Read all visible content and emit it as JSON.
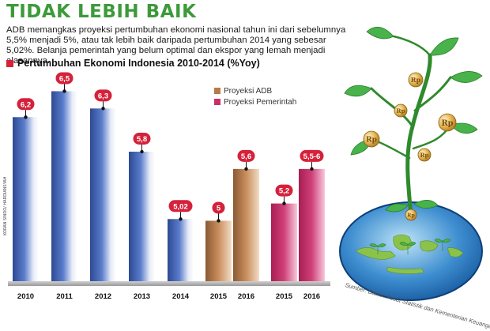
{
  "header": {
    "title": "TIDAK LEBIH BAIK",
    "description": "ADB memangkas proyeksi pertumbuhan ekonomi nasional tahun ini dari sebelumnya 5,5% menjadi 5%, atau tak lebih baik daripada pertumbuhan 2014 yang sebesar 5,02%. Belanja pemerintah yang belum optimal dan ekspor yang lemah menjadi alasannya."
  },
  "credit": "KORAN SINDO/ HARDIANSYAH",
  "source": "Sumber: Badan Pusat Statistik dan Kementerian Keuangan",
  "illustration": {
    "coin_label": "Rp"
  },
  "colors": {
    "title_green": "#3d9a3a",
    "accent_red": "#d5213a",
    "historical_blue": "#3d5fa8",
    "adb_bronze": "#b87a4a",
    "government_magenta": "#c8306a"
  },
  "chart_data": {
    "type": "bar",
    "title": "Pertumbuhan Ekonomi Indonesia 2010-2014 (%Yoy)",
    "ylim": [
      0,
      7.2
    ],
    "grid": false,
    "legend_position": "top-center",
    "legend": [
      {
        "name": "Proyeksi ADB",
        "color": "#b87a4a"
      },
      {
        "name": "Proyeksi Pemerintah",
        "color": "#c8306a"
      }
    ],
    "bars": [
      {
        "category": "2010",
        "value": 6.2,
        "label": "6,2",
        "color": "#3d5fa8"
      },
      {
        "category": "2011",
        "value": 6.5,
        "label": "6,5",
        "color": "#3d5fa8"
      },
      {
        "category": "2012",
        "value": 6.3,
        "label": "6,3",
        "color": "#3d5fa8"
      },
      {
        "category": "2013",
        "value": 5.8,
        "label": "5,8",
        "color": "#3d5fa8"
      },
      {
        "category": "2014",
        "value": 5.02,
        "label": "5,02",
        "color": "#3d5fa8"
      },
      {
        "category": "2015",
        "value": 5.0,
        "label": "5",
        "color": "#b87a4a"
      },
      {
        "category": "2016",
        "value": 5.6,
        "label": "5,6",
        "color": "#b87a4a"
      },
      {
        "category": "2015",
        "value": 5.2,
        "label": "5,2",
        "color": "#c8306a"
      },
      {
        "category": "2016",
        "value": 5.6,
        "label": "5,5-6",
        "color": "#c8306a"
      }
    ]
  }
}
